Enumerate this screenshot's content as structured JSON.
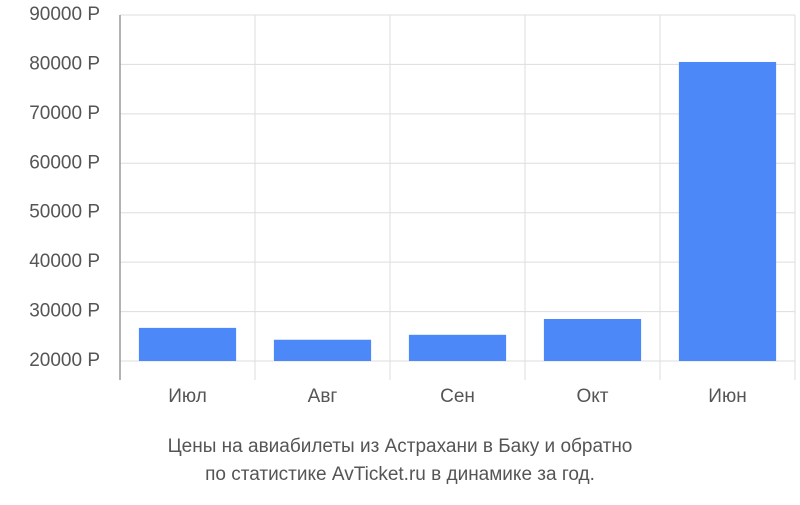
{
  "chart_data": {
    "type": "bar",
    "title": [
      "Цены на авиабилеты из Астрахани в Баку и обратно",
      "по статистике AvTicket.ru в динамике за год."
    ],
    "categories": [
      "Июл",
      "Авг",
      "Сен",
      "Окт",
      "Июн"
    ],
    "values": [
      26700,
      24300,
      25300,
      28500,
      80500
    ],
    "color": "#4d88f8",
    "ylim": [
      20000,
      90000
    ],
    "yticks": [
      {
        "value": 20000,
        "label": "20000 Р"
      },
      {
        "value": 30000,
        "label": "30000 Р"
      },
      {
        "value": 40000,
        "label": "40000 Р"
      },
      {
        "value": 50000,
        "label": "50000 Р"
      },
      {
        "value": 60000,
        "label": "60000 Р"
      },
      {
        "value": 70000,
        "label": "70000 Р"
      },
      {
        "value": 80000,
        "label": "80000 Р"
      },
      {
        "value": 90000,
        "label": "90000 Р"
      }
    ],
    "grid": true
  }
}
